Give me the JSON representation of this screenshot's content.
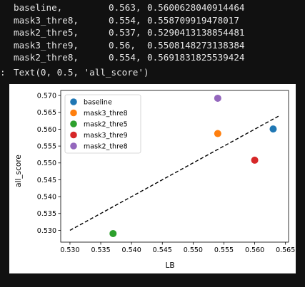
{
  "console": {
    "rows": [
      {
        "name": "baseline,",
        "lb": "0.563,",
        "score": "0.5600628040914464"
      },
      {
        "name": "mask3_thre8,",
        "lb": "0.554,",
        "score": "0.558709919478017"
      },
      {
        "name": "mask2_thre5,",
        "lb": "0.537,",
        "score": "0.5290413138854481"
      },
      {
        "name": "mask3_thre9,",
        "lb": "0.56,",
        "score": "0.5508148273138384"
      },
      {
        "name": "mask2_thre8,",
        "lb": "0.554,",
        "score": "0.5691831825539424"
      }
    ],
    "out_prompt": ":",
    "out_text": "Text(0, 0.5, 'all_score')"
  },
  "chart_data": {
    "type": "scatter",
    "xlabel": "LB",
    "ylabel": "all_score",
    "xlim": [
      0.5285,
      0.5655
    ],
    "ylim": [
      0.5265,
      0.5715
    ],
    "xticks": [
      "0.530",
      "0.535",
      "0.540",
      "0.545",
      "0.550",
      "0.555",
      "0.560",
      "0.565"
    ],
    "yticks": [
      "0.530",
      "0.535",
      "0.540",
      "0.545",
      "0.550",
      "0.555",
      "0.560",
      "0.565",
      "0.570"
    ],
    "legend_position": "top-left",
    "grid": false,
    "series": [
      {
        "name": "baseline",
        "color": "#1f77b4",
        "x": 0.563,
        "y": 0.5600628040914464
      },
      {
        "name": "mask3_thre8",
        "color": "#ff7f0e",
        "x": 0.554,
        "y": 0.558709919478017
      },
      {
        "name": "mask2_thre5",
        "color": "#2ca02c",
        "x": 0.537,
        "y": 0.5290413138854481
      },
      {
        "name": "mask3_thre9",
        "color": "#d62728",
        "x": 0.56,
        "y": 0.5508148273138384
      },
      {
        "name": "mask2_thre8",
        "color": "#9467bd",
        "x": 0.554,
        "y": 0.5691831825539424
      }
    ],
    "reference_line": {
      "style": "dashed",
      "color": "#000000",
      "x": [
        0.53,
        0.564
      ],
      "y": [
        0.53,
        0.564
      ]
    }
  }
}
